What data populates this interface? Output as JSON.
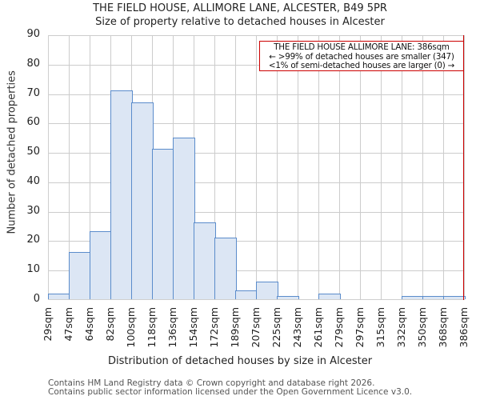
{
  "header": {
    "title": "THE FIELD HOUSE, ALLIMORE LANE, ALCESTER, B49 5PR",
    "subtitle": "Size of property relative to detached houses in Alcester"
  },
  "axes": {
    "ylabel": "Number of detached properties",
    "xlabel": "Distribution of detached houses by size in Alcester",
    "yticks": [
      "0",
      "10",
      "20",
      "30",
      "40",
      "50",
      "60",
      "70",
      "80",
      "90"
    ],
    "xticks": [
      "29sqm",
      "47sqm",
      "64sqm",
      "82sqm",
      "100sqm",
      "118sqm",
      "136sqm",
      "154sqm",
      "172sqm",
      "189sqm",
      "207sqm",
      "225sqm",
      "243sqm",
      "261sqm",
      "279sqm",
      "297sqm",
      "315sqm",
      "332sqm",
      "350sqm",
      "368sqm",
      "386sqm"
    ]
  },
  "annotation": {
    "line1": "THE FIELD HOUSE ALLIMORE LANE: 386sqm",
    "line2": "← >99% of detached houses are smaller (347)",
    "line3": "<1% of semi-detached houses are larger (0) →"
  },
  "footer": {
    "line1": "Contains HM Land Registry data © Crown copyright and database right 2026.",
    "line2": "Contains public sector information licensed under the Open Government Licence v3.0."
  },
  "colors": {
    "bar_fill": "#dce6f4",
    "bar_edge": "#5b8ccb",
    "marker": "#cc0000",
    "grid": "#cccccc"
  },
  "chart_data": {
    "type": "bar",
    "title": "THE FIELD HOUSE, ALLIMORE LANE, ALCESTER, B49 5PR",
    "subtitle": "Size of property relative to detached houses in Alcester",
    "xlabel": "Distribution of detached houses by size in Alcester",
    "ylabel": "Number of detached properties",
    "categories": [
      "29sqm",
      "47sqm",
      "64sqm",
      "82sqm",
      "100sqm",
      "118sqm",
      "136sqm",
      "154sqm",
      "172sqm",
      "189sqm",
      "207sqm",
      "225sqm",
      "243sqm",
      "261sqm",
      "279sqm",
      "297sqm",
      "315sqm",
      "332sqm",
      "350sqm",
      "368sqm"
    ],
    "bin_edges": [
      29,
      47,
      64,
      82,
      100,
      118,
      136,
      154,
      172,
      189,
      207,
      225,
      243,
      261,
      279,
      297,
      315,
      332,
      350,
      368,
      386
    ],
    "values": [
      2,
      16,
      23,
      71,
      67,
      51,
      55,
      26,
      21,
      3,
      6,
      1,
      0,
      2,
      0,
      0,
      0,
      1,
      1,
      1
    ],
    "ylim": [
      0,
      90
    ],
    "grid": true,
    "marker_line": {
      "x": "386sqm",
      "color": "#cc0000"
    },
    "annotations": [
      "THE FIELD HOUSE ALLIMORE LANE: 386sqm",
      "← >99% of detached houses are smaller (347)",
      "<1% of semi-detached houses are larger (0) →"
    ]
  }
}
